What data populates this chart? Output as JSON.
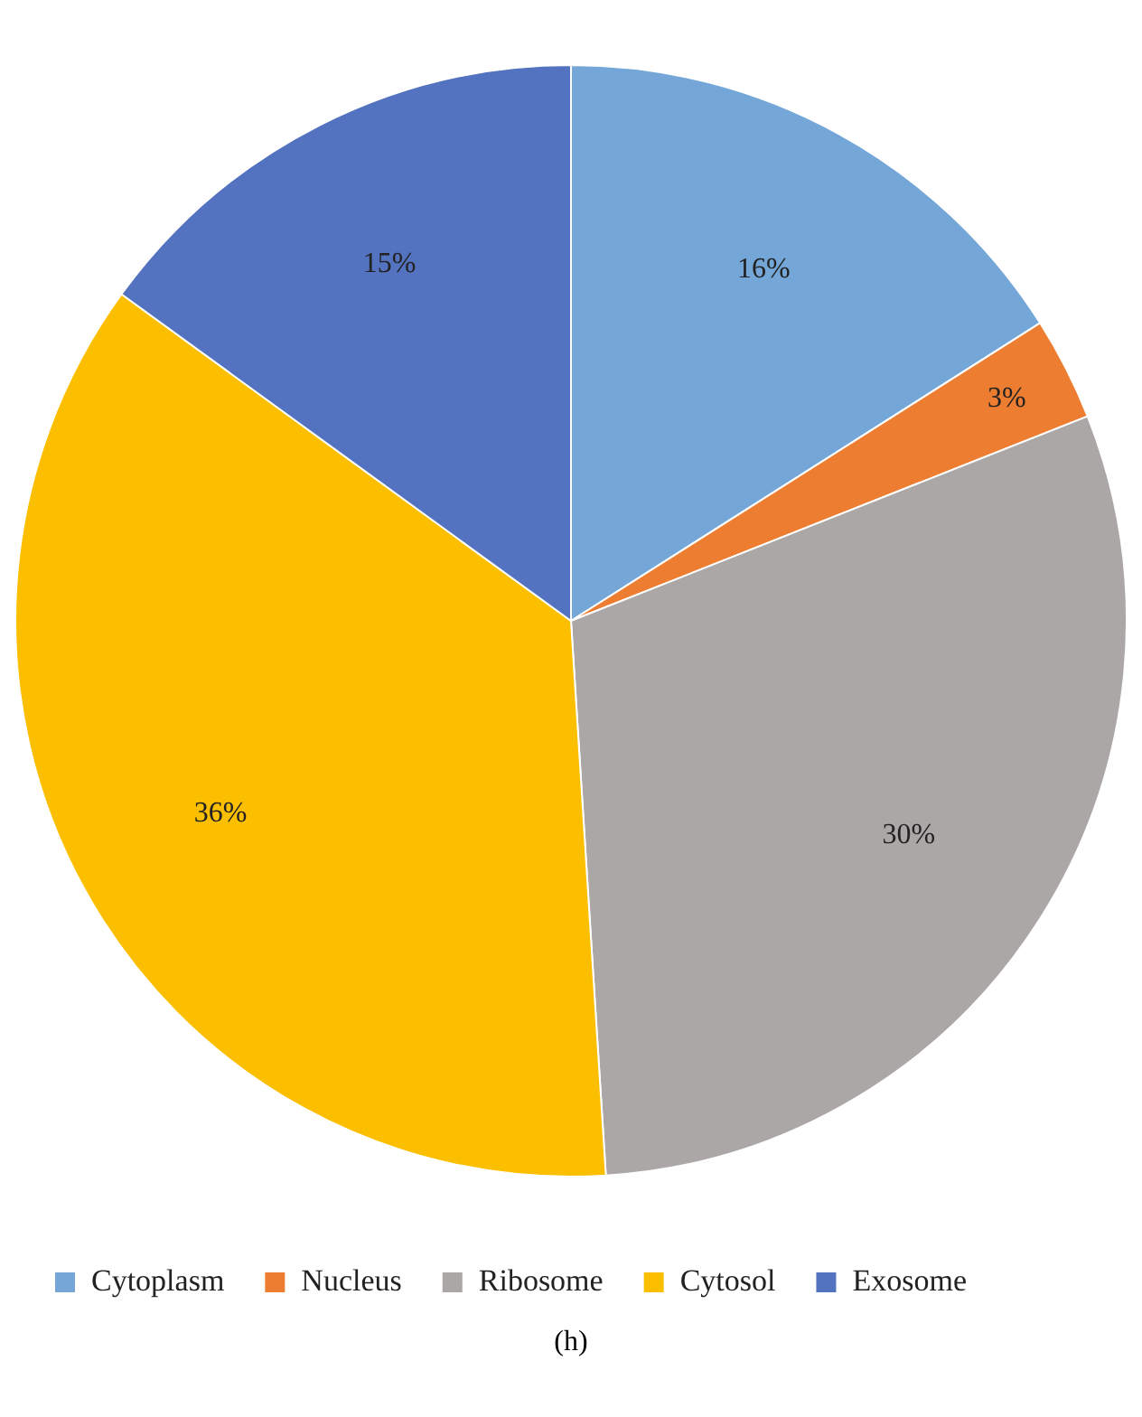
{
  "chart_data": {
    "type": "pie",
    "categories": [
      "Cytoplasm",
      "Nucleus",
      "Ribosome",
      "Cytosol",
      "Exosome"
    ],
    "values": [
      16,
      3,
      30,
      36,
      15
    ],
    "colors": [
      "#74a7d8",
      "#ed7d31",
      "#aba7a6",
      "#fbbf00",
      "#5372bf"
    ],
    "value_labels": [
      "16%",
      "3%",
      "30%",
      "36%",
      "15%"
    ],
    "legend": "bottom",
    "annotations": [
      "(h)"
    ]
  }
}
